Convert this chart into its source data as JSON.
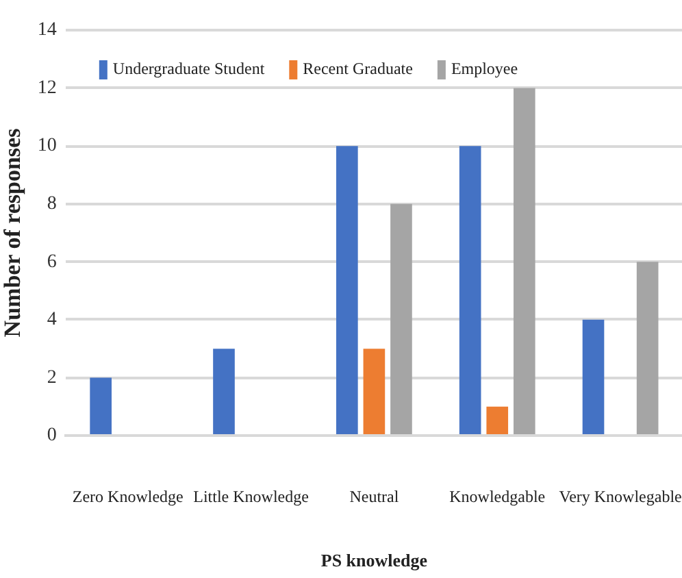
{
  "chart_data": {
    "type": "bar",
    "xlabel": "PS knowledge",
    "ylabel": "Number of responses",
    "categories": [
      "Zero Knowledge",
      "Little Knowledge",
      "Neutral",
      "Knowledgable",
      "Very Knowlegable"
    ],
    "series": [
      {
        "name": "Undergraduate Student",
        "color": "#4472c4",
        "values": [
          2,
          3,
          10,
          10,
          4
        ]
      },
      {
        "name": "Recent Graduate",
        "color": "#ed7d31",
        "values": [
          0,
          0,
          3,
          1,
          0
        ]
      },
      {
        "name": "Employee",
        "color": "#a5a5a5",
        "values": [
          0,
          0,
          8,
          12,
          6
        ]
      }
    ],
    "ylim": [
      0,
      14
    ],
    "yticks": [
      0,
      2,
      4,
      6,
      8,
      10,
      12,
      14
    ],
    "grid": "y",
    "legend": "top left"
  }
}
